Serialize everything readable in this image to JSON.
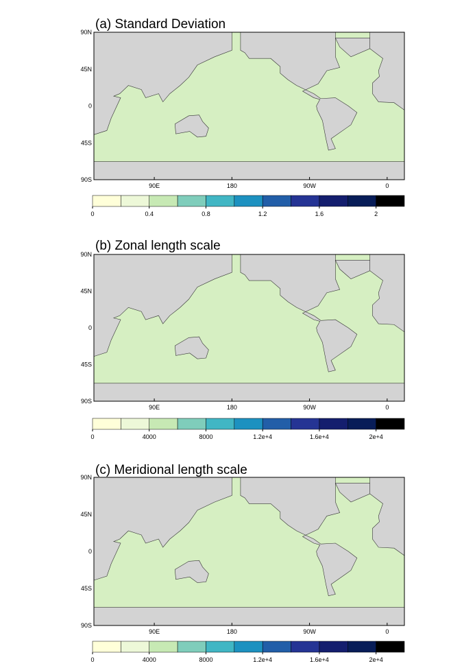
{
  "panels": [
    {
      "title": "(a) Standard Deviation",
      "lat_labels": [
        "90N",
        "45N",
        "0",
        "45S",
        "90S"
      ],
      "lon_labels": [
        "90E",
        "180",
        "90W",
        "0"
      ],
      "colorbar": {
        "lim": [
          0,
          2.2
        ],
        "ticks": [
          0,
          0.4,
          0.8,
          1.2,
          1.6,
          2
        ],
        "colors": [
          "#ffffd9",
          "#edf8d8",
          "#c7e9b4",
          "#7fcdbb",
          "#41b6c4",
          "#1d91c0",
          "#225ea8",
          "#253494",
          "#141e6e",
          "#081d58",
          "#000000"
        ]
      }
    },
    {
      "title": "(b) Zonal length scale",
      "lat_labels": [
        "90N",
        "45N",
        "0",
        "45S",
        "90S"
      ],
      "lon_labels": [
        "90E",
        "180",
        "90W",
        "0"
      ],
      "colorbar": {
        "lim": [
          0,
          22000
        ],
        "ticks": [
          0,
          4000,
          8000,
          {
            "value": 12000,
            "label": "1.2e+4"
          },
          {
            "value": 16000,
            "label": "1.6e+4"
          },
          {
            "value": 20000,
            "label": "2e+4"
          }
        ],
        "colors": [
          "#ffffd9",
          "#edf8d8",
          "#c7e9b4",
          "#7fcdbb",
          "#41b6c4",
          "#1d91c0",
          "#225ea8",
          "#253494",
          "#141e6e",
          "#081d58",
          "#000000"
        ]
      }
    },
    {
      "title": "(c) Meridional length scale",
      "lat_labels": [
        "90N",
        "45N",
        "0",
        "45S",
        "90S"
      ],
      "lon_labels": [
        "90E",
        "180",
        "90W",
        "0"
      ],
      "colorbar": {
        "lim": [
          0,
          22000
        ],
        "ticks": [
          0,
          4000,
          8000,
          {
            "value": 12000,
            "label": "1.2e+4"
          },
          {
            "value": 16000,
            "label": "1.6e+4"
          },
          {
            "value": 20000,
            "label": "2e+4"
          }
        ],
        "colors": [
          "#ffffd9",
          "#edf8d8",
          "#c7e9b4",
          "#7fcdbb",
          "#41b6c4",
          "#1d91c0",
          "#225ea8",
          "#253494",
          "#141e6e",
          "#081d58",
          "#000000"
        ]
      }
    }
  ]
}
